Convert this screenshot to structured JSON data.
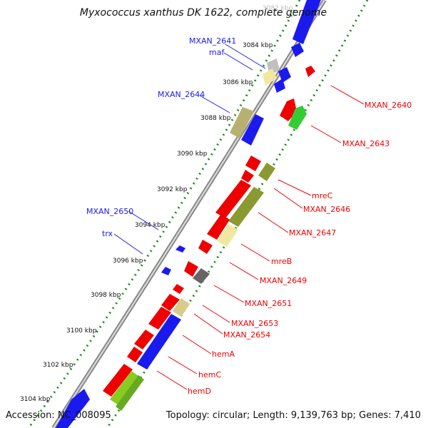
{
  "title": "Myxococcus xanthus DK 1622, complete genome",
  "accession": "Accession: NC_008095",
  "topology": "Topology: circular; Length: 9,139,763 bp; Genes: 7,410",
  "colors": {
    "forward": "#ff0000",
    "reverse": "#0000ff",
    "olive": "#8a9a30",
    "tan": "#c8b878",
    "pale": "#f0e8a0",
    "gray": "#707070",
    "lightgray": "#c8c8c8",
    "lime": "#66dd44"
  },
  "scale_ticks": [
    "3084 kbp",
    "3086 kbp",
    "3088 kbp",
    "3090 kbp",
    "3092 kbp",
    "3094 kbp",
    "3096 kbp",
    "3098 kbp",
    "3100 kbp",
    "3102 kbp",
    "3104 kbp"
  ],
  "top_tick_partial": "3082 kbp",
  "left_labels": [
    "MXAN_2641",
    "maf",
    "MXAN_2644",
    "MXAN_2650",
    "trx"
  ],
  "right_labels": [
    "MXAN_2640",
    "MXAN_2643",
    "mreC",
    "MXAN_2646",
    "MXAN_2647",
    "mreB",
    "MXAN_2649",
    "MXAN_2651",
    "MXAN_2653",
    "MXAN_2654",
    "hemA",
    "hemC",
    "hemD"
  ]
}
